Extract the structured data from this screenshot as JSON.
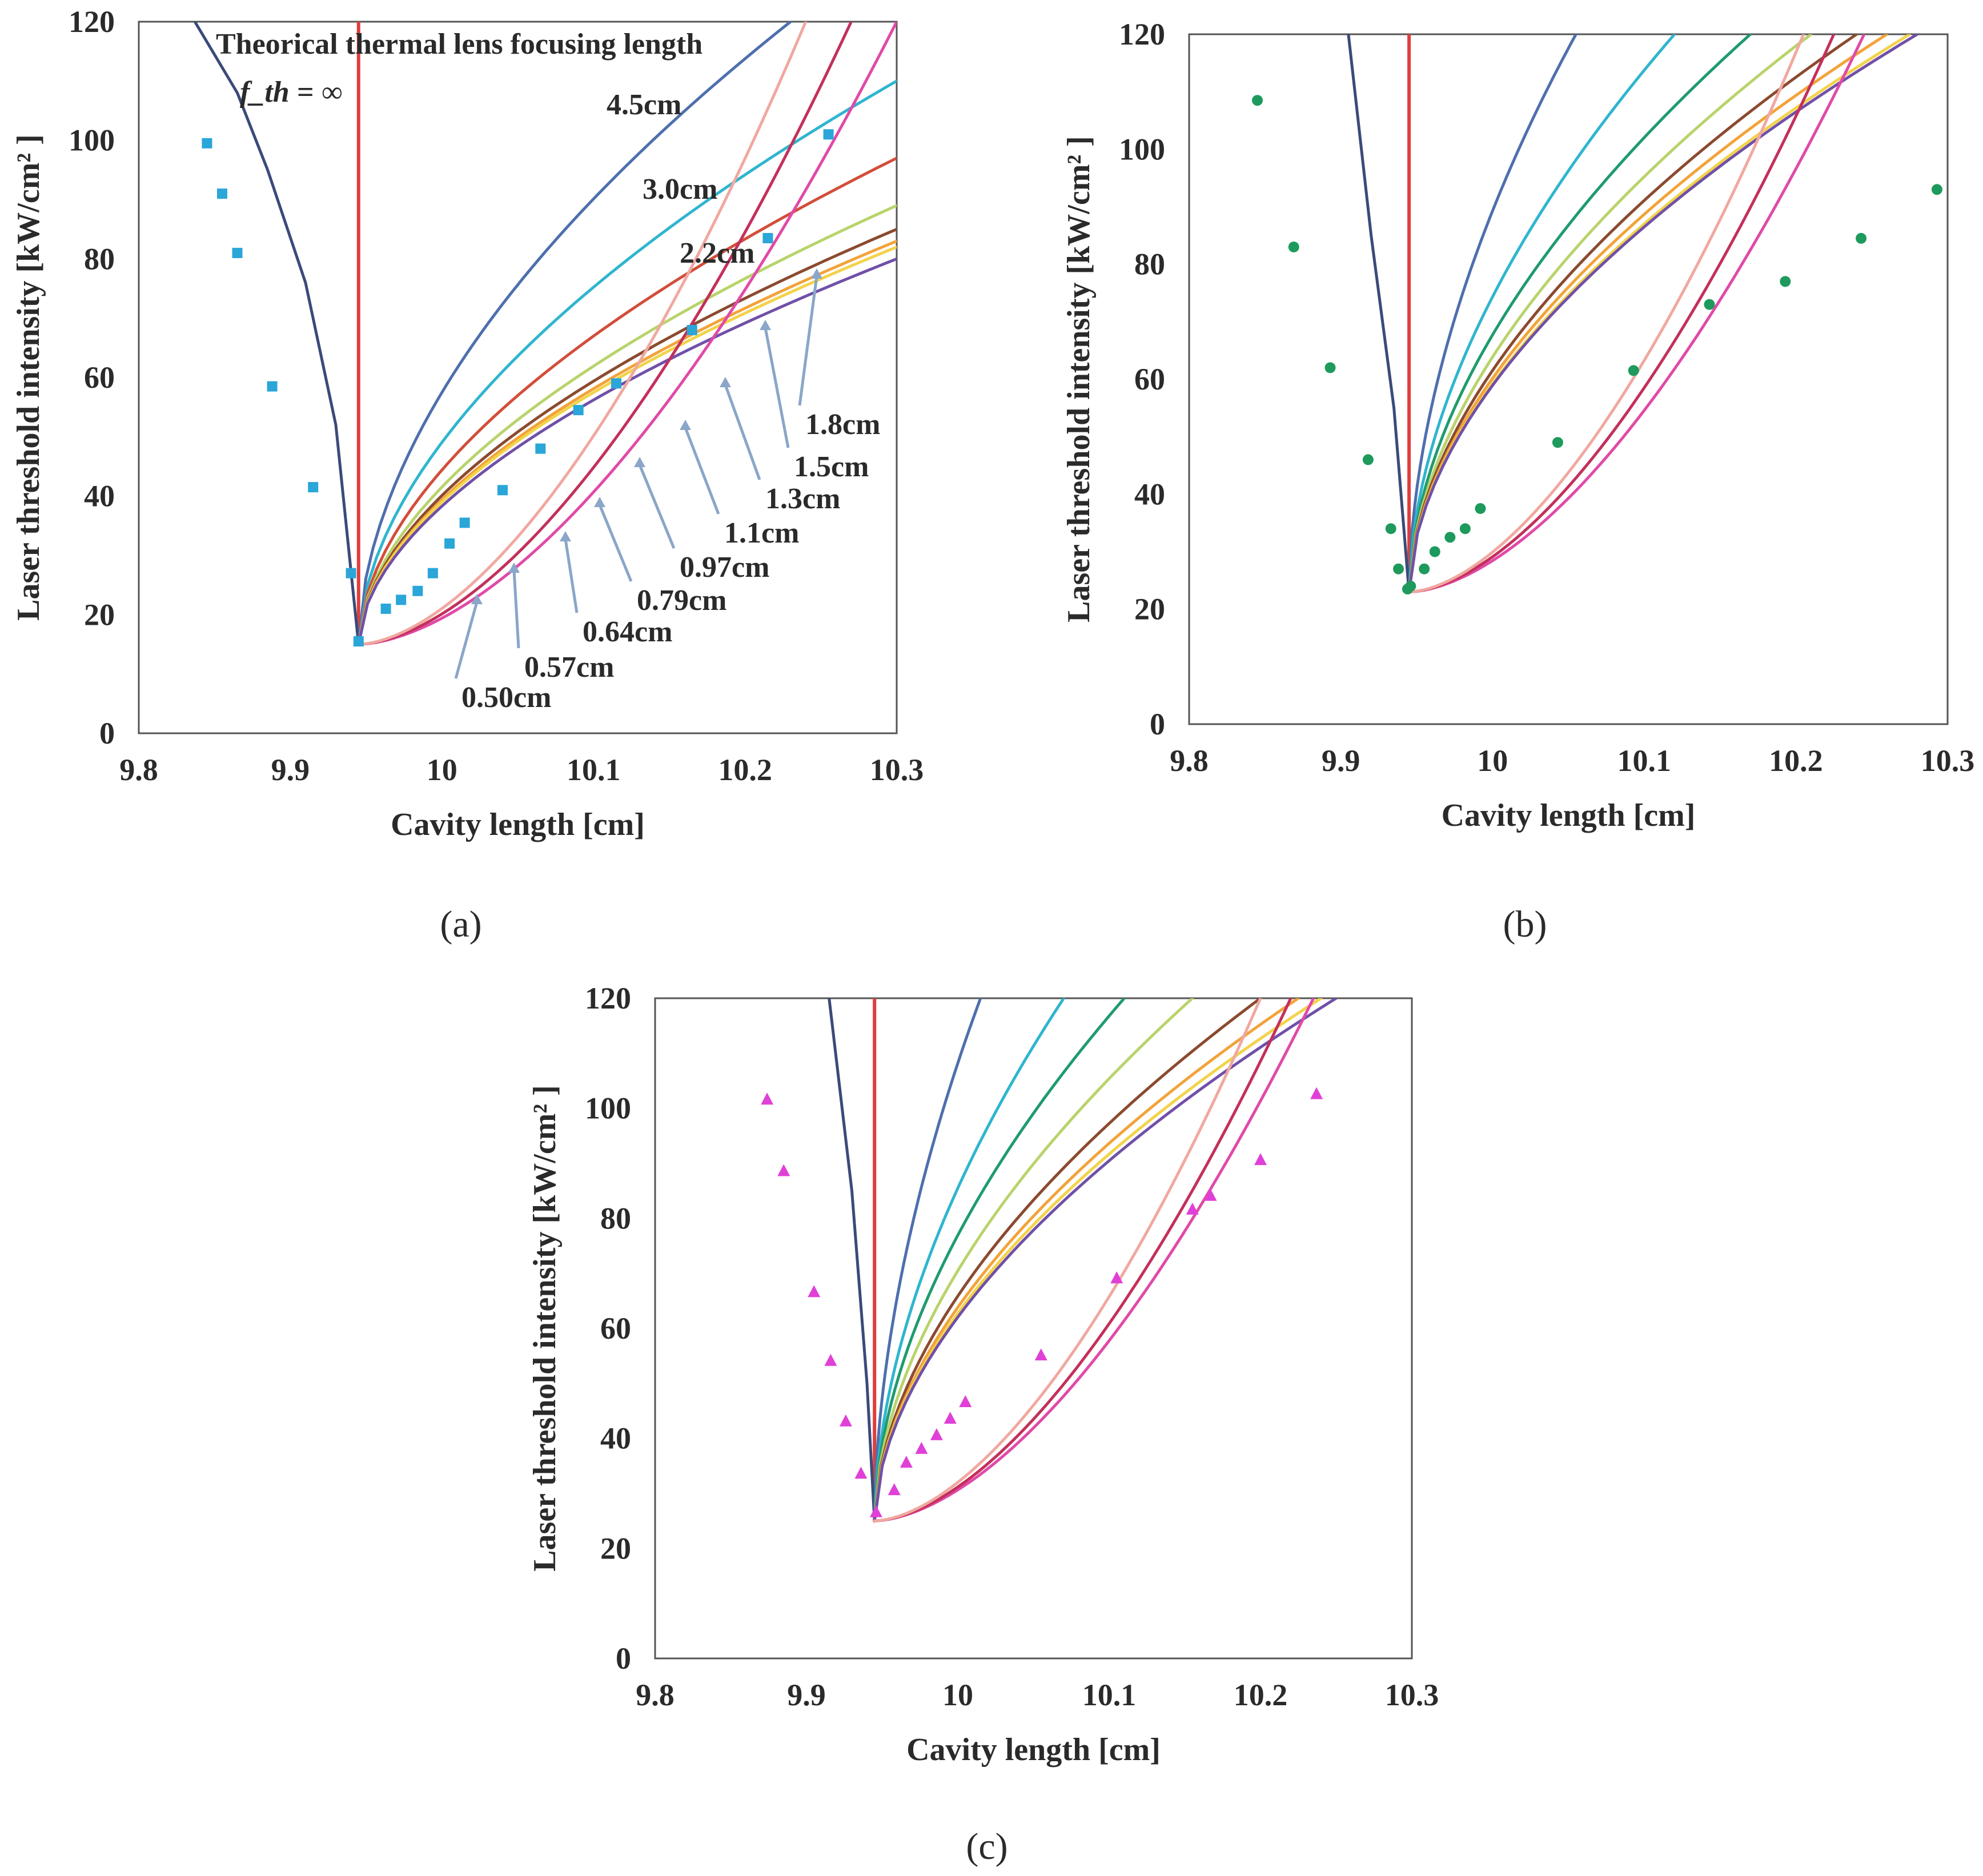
{
  "figure": {
    "lens_labels": [
      "4.5cm",
      "3.0cm",
      "2.2cm",
      "1.8cm",
      "1.5cm",
      "1.3cm",
      "1.1cm",
      "0.97cm",
      "0.79cm",
      "0.64cm",
      "0.57cm",
      "0.50cm"
    ],
    "theory_title": "Theorical thermal lens focusing length",
    "infinite_label": "f_th = ∞"
  },
  "chart_data": [
    {
      "type": "line",
      "panel_caption": "(a)",
      "xlabel": "Cavity length [cm]",
      "ylabel": "Laser threshold intensity [kW/cm² ]",
      "xlim": [
        9.8,
        10.3
      ],
      "ylim": [
        0,
        120
      ],
      "x_ticks": [
        "9.8",
        "9.9",
        "10",
        "10.1",
        "10.2",
        "10.3"
      ],
      "y_ticks": [
        "0",
        "20",
        "40",
        "60",
        "80",
        "100",
        "120"
      ],
      "grid": false,
      "vertex": {
        "x": 9.945,
        "y": 15
      },
      "theory_curves": [
        {
          "name": "f_th = ∞",
          "color": "#e03d3d",
          "type": "vertical"
        },
        {
          "name": "left branch",
          "color": "#3a4a7a",
          "type": "left",
          "points": [
            [
              9.945,
              15
            ],
            [
              9.93,
              52
            ],
            [
              9.91,
              76
            ],
            [
              9.885,
              95
            ],
            [
              9.865,
              108
            ],
            [
              9.837,
              120
            ]
          ]
        },
        {
          "name": "4.5cm",
          "color": "#4e6fae",
          "type": "power",
          "end": [
            10.23,
            120
          ]
        },
        {
          "name": "3.0cm",
          "color": "#2fb5cf",
          "type": "power",
          "end": [
            10.3,
            110
          ]
        },
        {
          "name": "2.2cm",
          "color": "#d24e3a",
          "type": "power",
          "end": [
            10.3,
            97
          ]
        },
        {
          "name": "1.8cm",
          "color": "#b9d36b",
          "type": "power",
          "end": [
            10.3,
            89
          ]
        },
        {
          "name": "1.5cm",
          "color": "#8b4a2f",
          "type": "power",
          "end": [
            10.3,
            85
          ]
        },
        {
          "name": "1.3cm",
          "color": "#f2a33a",
          "type": "power",
          "end": [
            10.3,
            83
          ]
        },
        {
          "name": "1.1cm",
          "color": "#f2d34a",
          "type": "power",
          "end": [
            10.3,
            82
          ]
        },
        {
          "name": "0.97cm",
          "color": "#7050a8",
          "type": "power",
          "end": [
            10.3,
            80
          ]
        },
        {
          "name": "0.79cm",
          "color": "#e04aa8",
          "type": "steep",
          "end": [
            10.3,
            120
          ]
        },
        {
          "name": "0.64cm",
          "color": "#c3305b",
          "type": "steep",
          "end": [
            10.27,
            120
          ]
        },
        {
          "name": "0.57cm",
          "color": "#f0a8a0",
          "type": "steep",
          "end": [
            10.24,
            120
          ]
        }
      ],
      "series": [
        {
          "name": "Measured",
          "marker": "square",
          "color": "#2aa6d8",
          "x": [
            9.845,
            9.855,
            9.865,
            9.888,
            9.915,
            9.94,
            9.945,
            9.963,
            9.973,
            9.984,
            9.994,
            10.005,
            10.015,
            10.04,
            10.065,
            10.09,
            10.115,
            10.165,
            10.215,
            10.255
          ],
          "y": [
            99.5,
            91,
            81,
            58.5,
            41.5,
            27,
            15.5,
            21,
            22.5,
            24,
            27,
            32,
            35.5,
            41,
            48,
            54.5,
            59,
            68,
            83.5,
            101
          ]
        }
      ],
      "annotations": [
        {
          "text": "Theorical thermal lens focusing length"
        },
        {
          "text": "f_th = ∞"
        },
        {
          "text": "4.5cm"
        },
        {
          "text": "3.0cm"
        },
        {
          "text": "2.2cm"
        },
        {
          "text": "1.8cm"
        },
        {
          "text": "1.5cm"
        },
        {
          "text": "1.3cm"
        },
        {
          "text": "1.1cm"
        },
        {
          "text": "0.97cm"
        },
        {
          "text": "0.79cm"
        },
        {
          "text": "0.64cm"
        },
        {
          "text": "0.57cm"
        },
        {
          "text": "0.50cm"
        }
      ]
    },
    {
      "type": "line",
      "panel_caption": "(b)",
      "xlabel": "Cavity length [cm]",
      "ylabel": "Laser threshold intensity [kW/cm² ]",
      "xlim": [
        9.8,
        10.3
      ],
      "ylim": [
        0,
        120
      ],
      "x_ticks": [
        "9.8",
        "9.9",
        "10",
        "10.1",
        "10.2",
        "10.3"
      ],
      "y_ticks": [
        "0",
        "20",
        "40",
        "60",
        "80",
        "100",
        "120"
      ],
      "grid": false,
      "vertex": {
        "x": 9.945,
        "y": 23
      },
      "theory_curves": [
        {
          "name": "f_th = ∞",
          "color": "#e03d3d",
          "type": "vertical"
        },
        {
          "name": "left branch",
          "color": "#3a4a7a",
          "type": "left",
          "points": [
            [
              9.945,
              23
            ],
            [
              9.935,
              55
            ],
            [
              9.92,
              85
            ],
            [
              9.905,
              120
            ]
          ]
        },
        {
          "name": "4.5cm",
          "color": "#4e6fae",
          "type": "power",
          "end": [
            10.055,
            120
          ]
        },
        {
          "name": "3.0cm",
          "color": "#2fb5cf",
          "type": "power",
          "end": [
            10.12,
            120
          ]
        },
        {
          "name": "2.2cm",
          "color": "#1f9b6e",
          "type": "power",
          "end": [
            10.17,
            120
          ]
        },
        {
          "name": "1.8cm",
          "color": "#b9d36b",
          "type": "power",
          "end": [
            10.21,
            120
          ]
        },
        {
          "name": "1.5cm",
          "color": "#8b4a2f",
          "type": "power",
          "end": [
            10.24,
            120
          ]
        },
        {
          "name": "1.3cm",
          "color": "#f2a33a",
          "type": "power",
          "end": [
            10.26,
            120
          ]
        },
        {
          "name": "1.1cm",
          "color": "#f2d34a",
          "type": "power",
          "end": [
            10.275,
            120
          ]
        },
        {
          "name": "0.97cm",
          "color": "#7050a8",
          "type": "power",
          "end": [
            10.28,
            120
          ]
        },
        {
          "name": "0.79cm",
          "color": "#e04aa8",
          "type": "steep",
          "end": [
            10.245,
            120
          ]
        },
        {
          "name": "0.64cm",
          "color": "#c3305b",
          "type": "steep",
          "end": [
            10.225,
            120
          ]
        },
        {
          "name": "0.57cm",
          "color": "#f0a8a0",
          "type": "steep",
          "end": [
            10.205,
            120
          ]
        }
      ],
      "series": [
        {
          "name": "Measured",
          "marker": "circle",
          "color": "#1e9a5c",
          "x": [
            9.845,
            9.869,
            9.893,
            9.918,
            9.933,
            9.938,
            9.944,
            9.946,
            9.955,
            9.962,
            9.972,
            9.982,
            9.992,
            10.043,
            10.093,
            10.143,
            10.193,
            10.243,
            10.293
          ],
          "y": [
            108.5,
            83,
            62,
            46,
            34,
            27,
            23.5,
            24,
            27,
            30,
            32.5,
            34,
            37.5,
            49,
            61.5,
            73,
            77,
            84.5,
            93
          ]
        }
      ]
    },
    {
      "type": "line",
      "panel_caption": "(c)",
      "xlabel": "Cavity length [cm]",
      "ylabel": "Laser threshold intensity [kW/cm² ]",
      "xlim": [
        9.8,
        10.3
      ],
      "ylim": [
        0,
        120
      ],
      "x_ticks": [
        "9.8",
        "9.9",
        "10",
        "10.1",
        "10.2",
        "10.3"
      ],
      "y_ticks": [
        "0",
        "20",
        "40",
        "60",
        "80",
        "100",
        "120"
      ],
      "grid": false,
      "vertex": {
        "x": 9.945,
        "y": 25
      },
      "theory_curves": [
        {
          "name": "f_th = ∞",
          "color": "#e03d3d",
          "type": "vertical"
        },
        {
          "name": "left branch",
          "color": "#3a4a7a",
          "type": "left",
          "points": [
            [
              9.945,
              25
            ],
            [
              9.94,
              50
            ],
            [
              9.93,
              85
            ],
            [
              9.915,
              120
            ]
          ]
        },
        {
          "name": "4.5cm",
          "color": "#4e6fae",
          "type": "power",
          "end": [
            10.015,
            120
          ]
        },
        {
          "name": "3.0cm",
          "color": "#2fb5cf",
          "type": "power",
          "end": [
            10.07,
            120
          ]
        },
        {
          "name": "2.2cm",
          "color": "#1f9b6e",
          "type": "power",
          "end": [
            10.11,
            120
          ]
        },
        {
          "name": "1.8cm",
          "color": "#b9d36b",
          "type": "power",
          "end": [
            10.155,
            120
          ]
        },
        {
          "name": "1.5cm",
          "color": "#8b4a2f",
          "type": "power",
          "end": [
            10.2,
            120
          ]
        },
        {
          "name": "1.3cm",
          "color": "#f2a33a",
          "type": "power",
          "end": [
            10.225,
            120
          ]
        },
        {
          "name": "1.1cm",
          "color": "#f2d34a",
          "type": "power",
          "end": [
            10.24,
            120
          ]
        },
        {
          "name": "0.97cm",
          "color": "#7050a8",
          "type": "power",
          "end": [
            10.25,
            120
          ]
        },
        {
          "name": "0.79cm",
          "color": "#e04aa8",
          "type": "steep",
          "end": [
            10.235,
            120
          ]
        },
        {
          "name": "0.64cm",
          "color": "#c3305b",
          "type": "steep",
          "end": [
            10.22,
            120
          ]
        },
        {
          "name": "0.57cm",
          "color": "#f0a8a0",
          "type": "steep",
          "end": [
            10.2,
            120
          ]
        }
      ],
      "series": [
        {
          "name": "Measured",
          "marker": "triangle",
          "color": "#e040d8",
          "x": [
            9.874,
            9.885,
            9.905,
            9.916,
            9.926,
            9.936,
            9.946,
            9.958,
            9.966,
            9.976,
            9.986,
            9.995,
            10.005,
            10.055,
            10.105,
            10.155,
            10.167,
            10.2,
            10.237
          ],
          "y": [
            101.5,
            88.5,
            66.5,
            54,
            43,
            33.5,
            26.5,
            30.5,
            35.5,
            38,
            40.5,
            43.5,
            46.5,
            55,
            69,
            81.5,
            84,
            90.5,
            102.5
          ]
        }
      ]
    }
  ]
}
